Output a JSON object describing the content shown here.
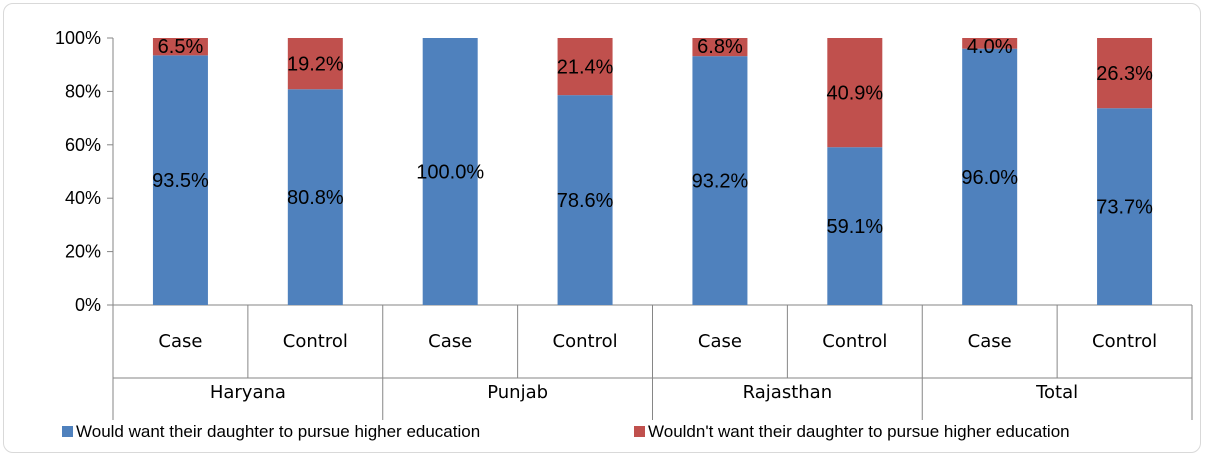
{
  "chart_data": {
    "type": "bar",
    "stacked": true,
    "percent_stacked": true,
    "groups": [
      "Haryana",
      "Punjab",
      "Rajasthan",
      "Total"
    ],
    "categories": [
      "Case",
      "Control",
      "Case",
      "Control",
      "Case",
      "Control",
      "Case",
      "Control"
    ],
    "y_ticks": [
      "0%",
      "20%",
      "40%",
      "60%",
      "80%",
      "100%"
    ],
    "ylim": [
      0,
      100
    ],
    "grid": false,
    "legend_position": "bottom",
    "series": [
      {
        "name": "Would want their daughter to pursue higher education",
        "color": "#4F81BD",
        "values": [
          93.5,
          80.8,
          100.0,
          78.6,
          93.2,
          59.1,
          96.0,
          73.7
        ],
        "labels": [
          "93.5%",
          "80.8%",
          "100.0%",
          "78.6%",
          "93.2%",
          "59.1%",
          "96.0%",
          "73.7%"
        ]
      },
      {
        "name": "Wouldn't want their daughter to pursue higher education",
        "color": "#C0504D",
        "values": [
          6.5,
          19.2,
          0,
          21.4,
          6.8,
          40.9,
          4.0,
          26.3
        ],
        "labels": [
          "6.5%",
          "19.2%",
          "",
          "21.4%",
          "6.8%",
          "40.9%",
          "4.0%",
          "26.3%"
        ]
      }
    ]
  }
}
